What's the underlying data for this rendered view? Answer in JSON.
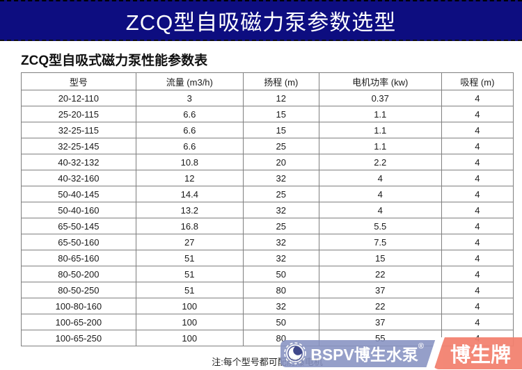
{
  "banner": {
    "title": "ZCQ型自吸磁力泵参数选型"
  },
  "table": {
    "title": "ZCQ型自吸式磁力泵性能参数表",
    "columns": [
      "型号",
      "流量 (m3/h)",
      "扬程 (m)",
      "电机功率 (kw)",
      "吸程 (m)"
    ],
    "rows": [
      [
        "20-12-110",
        "3",
        "12",
        "0.37",
        "4"
      ],
      [
        "25-20-115",
        "6.6",
        "15",
        "1.1",
        "4"
      ],
      [
        "32-25-115",
        "6.6",
        "15",
        "1.1",
        "4"
      ],
      [
        "32-25-145",
        "6.6",
        "25",
        "1.1",
        "4"
      ],
      [
        "40-32-132",
        "10.8",
        "20",
        "2.2",
        "4"
      ],
      [
        "40-32-160",
        "12",
        "32",
        "4",
        "4"
      ],
      [
        "50-40-145",
        "14.4",
        "25",
        "4",
        "4"
      ],
      [
        "50-40-160",
        "13.2",
        "32",
        "4",
        "4"
      ],
      [
        "65-50-145",
        "16.8",
        "25",
        "5.5",
        "4"
      ],
      [
        "65-50-160",
        "27",
        "32",
        "7.5",
        "4"
      ],
      [
        "80-65-160",
        "51",
        "32",
        "15",
        "4"
      ],
      [
        "80-50-200",
        "51",
        "50",
        "22",
        "4"
      ],
      [
        "80-50-250",
        "51",
        "80",
        "37",
        "4"
      ],
      [
        "100-80-160",
        "100",
        "32",
        "22",
        "4"
      ],
      [
        "100-65-200",
        "100",
        "50",
        "37",
        "4"
      ],
      [
        "100-65-250",
        "100",
        "80",
        "55",
        "4"
      ]
    ]
  },
  "note": "注:每个型号都可配防爆电机",
  "logo": {
    "brand": "BSPV博生水泵",
    "registered": "®",
    "badge": "博生牌",
    "icon": "pump-swirl-icon"
  },
  "colors": {
    "banner_bg": "#0d0d80",
    "logo_blue": "#8792c2",
    "logo_red": "#f3816f",
    "table_border": "#7f7f7f"
  }
}
